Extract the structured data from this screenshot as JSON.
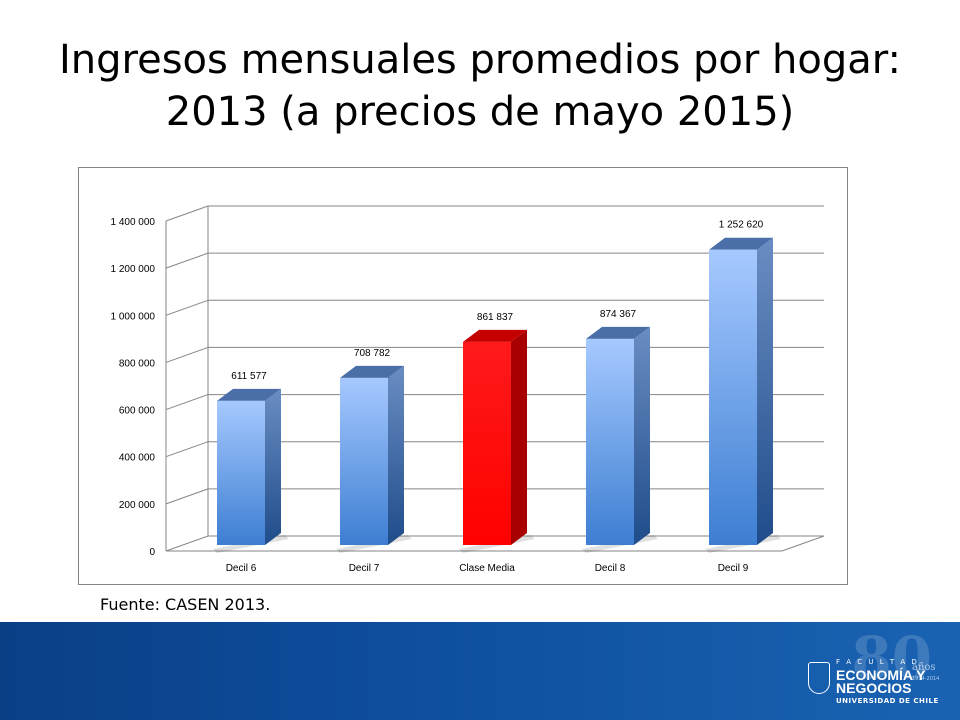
{
  "slide": {
    "title": "Ingresos mensuales promedios por hogar: 2013 (a precios de mayo 2015)",
    "source": "Fuente: CASEN 2013."
  },
  "chart_data": {
    "type": "bar",
    "style": "3d-column",
    "title": "",
    "xlabel": "",
    "ylabel": "",
    "categories": [
      "Decil 6",
      "Decil 7",
      "Clase Media",
      "Decil 8",
      "Decil 9"
    ],
    "values": [
      611577,
      708782,
      861837,
      874367,
      1252620
    ],
    "data_labels": [
      "611 577",
      "708 782",
      "861 837",
      "874 367",
      "1 252 620"
    ],
    "y_ticks": [
      0,
      200000,
      400000,
      600000,
      800000,
      1000000,
      1200000,
      1400000
    ],
    "y_tick_labels": [
      "0",
      "200 000",
      "400 000",
      "600 000",
      "800 000",
      "1 000 000",
      "1 200 000",
      "1 400 000"
    ],
    "ylim": [
      0,
      1400000
    ],
    "grid": true,
    "legend": "none",
    "colors": {
      "default_bar": "#4f8fdc",
      "highlight_bar": "#ff0000",
      "gridline": "#868686"
    },
    "highlight_category": "Clase Media"
  },
  "footer": {
    "watermark": "80",
    "logo_faculty": "F A C U L T A D",
    "logo_line1": "ECONOMÍA Y",
    "logo_line2": "NEGOCIOS",
    "logo_university": "UNIVERSIDAD DE CHILE",
    "logo_anos": "años",
    "logo_years": "1934-2014"
  }
}
